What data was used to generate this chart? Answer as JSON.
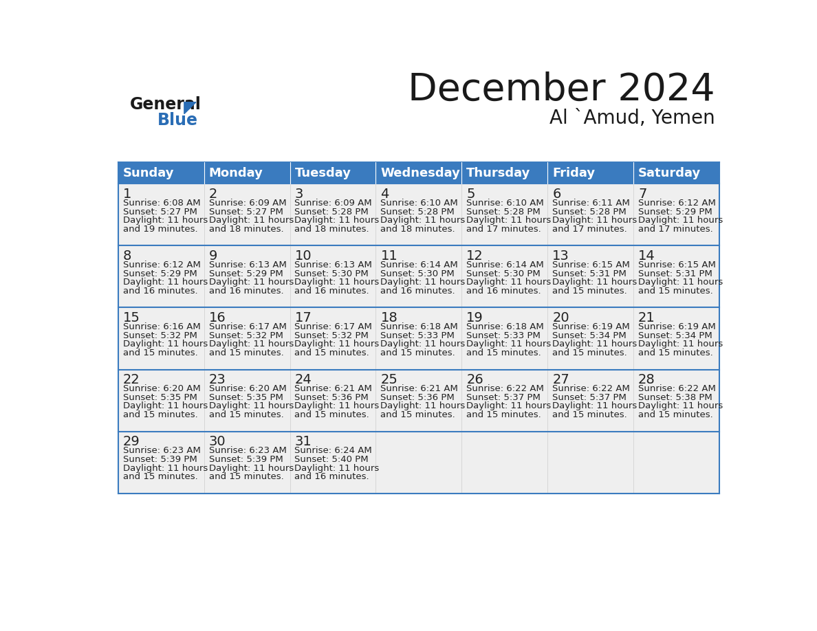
{
  "title": "December 2024",
  "subtitle": "Al `Amud, Yemen",
  "header_color": "#3a7bbf",
  "header_text_color": "#ffffff",
  "cell_bg_color": "#efefef",
  "border_color": "#3a7bbf",
  "text_color": "#222222",
  "day_names": [
    "Sunday",
    "Monday",
    "Tuesday",
    "Wednesday",
    "Thursday",
    "Friday",
    "Saturday"
  ],
  "weeks": [
    [
      {
        "day": 1,
        "sunrise": "6:08 AM",
        "sunset": "5:27 PM",
        "daylight": "11 hours and 19 minutes."
      },
      {
        "day": 2,
        "sunrise": "6:09 AM",
        "sunset": "5:27 PM",
        "daylight": "11 hours and 18 minutes."
      },
      {
        "day": 3,
        "sunrise": "6:09 AM",
        "sunset": "5:28 PM",
        "daylight": "11 hours and 18 minutes."
      },
      {
        "day": 4,
        "sunrise": "6:10 AM",
        "sunset": "5:28 PM",
        "daylight": "11 hours and 18 minutes."
      },
      {
        "day": 5,
        "sunrise": "6:10 AM",
        "sunset": "5:28 PM",
        "daylight": "11 hours and 17 minutes."
      },
      {
        "day": 6,
        "sunrise": "6:11 AM",
        "sunset": "5:28 PM",
        "daylight": "11 hours and 17 minutes."
      },
      {
        "day": 7,
        "sunrise": "6:12 AM",
        "sunset": "5:29 PM",
        "daylight": "11 hours and 17 minutes."
      }
    ],
    [
      {
        "day": 8,
        "sunrise": "6:12 AM",
        "sunset": "5:29 PM",
        "daylight": "11 hours and 16 minutes."
      },
      {
        "day": 9,
        "sunrise": "6:13 AM",
        "sunset": "5:29 PM",
        "daylight": "11 hours and 16 minutes."
      },
      {
        "day": 10,
        "sunrise": "6:13 AM",
        "sunset": "5:30 PM",
        "daylight": "11 hours and 16 minutes."
      },
      {
        "day": 11,
        "sunrise": "6:14 AM",
        "sunset": "5:30 PM",
        "daylight": "11 hours and 16 minutes."
      },
      {
        "day": 12,
        "sunrise": "6:14 AM",
        "sunset": "5:30 PM",
        "daylight": "11 hours and 16 minutes."
      },
      {
        "day": 13,
        "sunrise": "6:15 AM",
        "sunset": "5:31 PM",
        "daylight": "11 hours and 15 minutes."
      },
      {
        "day": 14,
        "sunrise": "6:15 AM",
        "sunset": "5:31 PM",
        "daylight": "11 hours and 15 minutes."
      }
    ],
    [
      {
        "day": 15,
        "sunrise": "6:16 AM",
        "sunset": "5:32 PM",
        "daylight": "11 hours and 15 minutes."
      },
      {
        "day": 16,
        "sunrise": "6:17 AM",
        "sunset": "5:32 PM",
        "daylight": "11 hours and 15 minutes."
      },
      {
        "day": 17,
        "sunrise": "6:17 AM",
        "sunset": "5:32 PM",
        "daylight": "11 hours and 15 minutes."
      },
      {
        "day": 18,
        "sunrise": "6:18 AM",
        "sunset": "5:33 PM",
        "daylight": "11 hours and 15 minutes."
      },
      {
        "day": 19,
        "sunrise": "6:18 AM",
        "sunset": "5:33 PM",
        "daylight": "11 hours and 15 minutes."
      },
      {
        "day": 20,
        "sunrise": "6:19 AM",
        "sunset": "5:34 PM",
        "daylight": "11 hours and 15 minutes."
      },
      {
        "day": 21,
        "sunrise": "6:19 AM",
        "sunset": "5:34 PM",
        "daylight": "11 hours and 15 minutes."
      }
    ],
    [
      {
        "day": 22,
        "sunrise": "6:20 AM",
        "sunset": "5:35 PM",
        "daylight": "11 hours and 15 minutes."
      },
      {
        "day": 23,
        "sunrise": "6:20 AM",
        "sunset": "5:35 PM",
        "daylight": "11 hours and 15 minutes."
      },
      {
        "day": 24,
        "sunrise": "6:21 AM",
        "sunset": "5:36 PM",
        "daylight": "11 hours and 15 minutes."
      },
      {
        "day": 25,
        "sunrise": "6:21 AM",
        "sunset": "5:36 PM",
        "daylight": "11 hours and 15 minutes."
      },
      {
        "day": 26,
        "sunrise": "6:22 AM",
        "sunset": "5:37 PM",
        "daylight": "11 hours and 15 minutes."
      },
      {
        "day": 27,
        "sunrise": "6:22 AM",
        "sunset": "5:37 PM",
        "daylight": "11 hours and 15 minutes."
      },
      {
        "day": 28,
        "sunrise": "6:22 AM",
        "sunset": "5:38 PM",
        "daylight": "11 hours and 15 minutes."
      }
    ],
    [
      {
        "day": 29,
        "sunrise": "6:23 AM",
        "sunset": "5:39 PM",
        "daylight": "11 hours and 15 minutes."
      },
      {
        "day": 30,
        "sunrise": "6:23 AM",
        "sunset": "5:39 PM",
        "daylight": "11 hours and 15 minutes."
      },
      {
        "day": 31,
        "sunrise": "6:24 AM",
        "sunset": "5:40 PM",
        "daylight": "11 hours and 16 minutes."
      },
      null,
      null,
      null,
      null
    ]
  ],
  "logo_general_color": "#1a1a1a",
  "logo_blue_color": "#2a6db5"
}
